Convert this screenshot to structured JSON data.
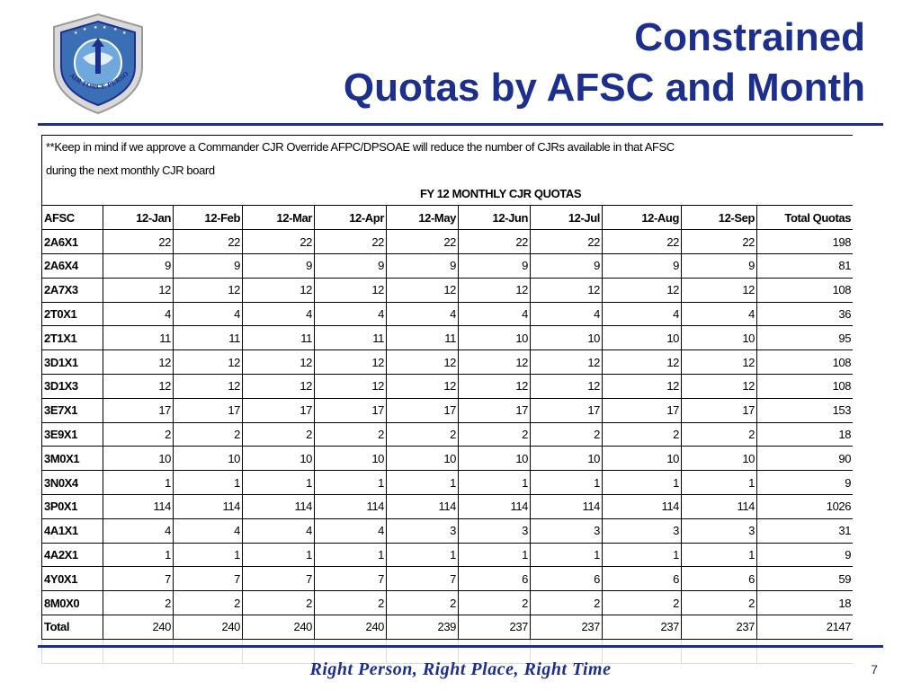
{
  "logo": {
    "text": "AIR FORCE PERSONNEL CENTER"
  },
  "title": {
    "line1": "Constrained",
    "line2": "Quotas by AFSC and Month"
  },
  "table": {
    "note_line1": "**Keep in mind if we approve a Commander CJR Override AFPC/DPSOAE will reduce the number of CJRs available in that AFSC",
    "note_line2": "during the next monthly CJR board",
    "heading": "FY 12 MONTHLY CJR QUOTAS",
    "columns": [
      "AFSC",
      "12-Jan",
      "12-Feb",
      "12-Mar",
      "12-Apr",
      "12-May",
      "12-Jun",
      "12-Jul",
      "12-Aug",
      "12-Sep",
      "Total Quotas"
    ],
    "rows": [
      [
        "2A6X1",
        "22",
        "22",
        "22",
        "22",
        "22",
        "22",
        "22",
        "22",
        "22",
        "198"
      ],
      [
        "2A6X4",
        "9",
        "9",
        "9",
        "9",
        "9",
        "9",
        "9",
        "9",
        "9",
        "81"
      ],
      [
        "2A7X3",
        "12",
        "12",
        "12",
        "12",
        "12",
        "12",
        "12",
        "12",
        "12",
        "108"
      ],
      [
        "2T0X1",
        "4",
        "4",
        "4",
        "4",
        "4",
        "4",
        "4",
        "4",
        "4",
        "36"
      ],
      [
        "2T1X1",
        "11",
        "11",
        "11",
        "11",
        "11",
        "10",
        "10",
        "10",
        "10",
        "95"
      ],
      [
        "3D1X1",
        "12",
        "12",
        "12",
        "12",
        "12",
        "12",
        "12",
        "12",
        "12",
        "108"
      ],
      [
        "3D1X3",
        "12",
        "12",
        "12",
        "12",
        "12",
        "12",
        "12",
        "12",
        "12",
        "108"
      ],
      [
        "3E7X1",
        "17",
        "17",
        "17",
        "17",
        "17",
        "17",
        "17",
        "17",
        "17",
        "153"
      ],
      [
        "3E9X1",
        "2",
        "2",
        "2",
        "2",
        "2",
        "2",
        "2",
        "2",
        "2",
        "18"
      ],
      [
        "3M0X1",
        "10",
        "10",
        "10",
        "10",
        "10",
        "10",
        "10",
        "10",
        "10",
        "90"
      ],
      [
        "3N0X4",
        "1",
        "1",
        "1",
        "1",
        "1",
        "1",
        "1",
        "1",
        "1",
        "9"
      ],
      [
        "3P0X1",
        "114",
        "114",
        "114",
        "114",
        "114",
        "114",
        "114",
        "114",
        "114",
        "1026"
      ],
      [
        "4A1X1",
        "4",
        "4",
        "4",
        "4",
        "3",
        "3",
        "3",
        "3",
        "3",
        "31"
      ],
      [
        "4A2X1",
        "1",
        "1",
        "1",
        "1",
        "1",
        "1",
        "1",
        "1",
        "1",
        "9"
      ],
      [
        "4Y0X1",
        "7",
        "7",
        "7",
        "7",
        "7",
        "6",
        "6",
        "6",
        "6",
        "59"
      ],
      [
        "8M0X0",
        "2",
        "2",
        "2",
        "2",
        "2",
        "2",
        "2",
        "2",
        "2",
        "18"
      ],
      [
        "Total",
        "240",
        "240",
        "240",
        "240",
        "239",
        "237",
        "237",
        "237",
        "237",
        "2147"
      ]
    ]
  },
  "footer": {
    "tagline": "Right Person, Right Place, Right Time",
    "slide_number": "7"
  },
  "colors": {
    "title": "#1d2f8c",
    "rule": "#1d2f8c",
    "gridline": "#d6dde6"
  }
}
